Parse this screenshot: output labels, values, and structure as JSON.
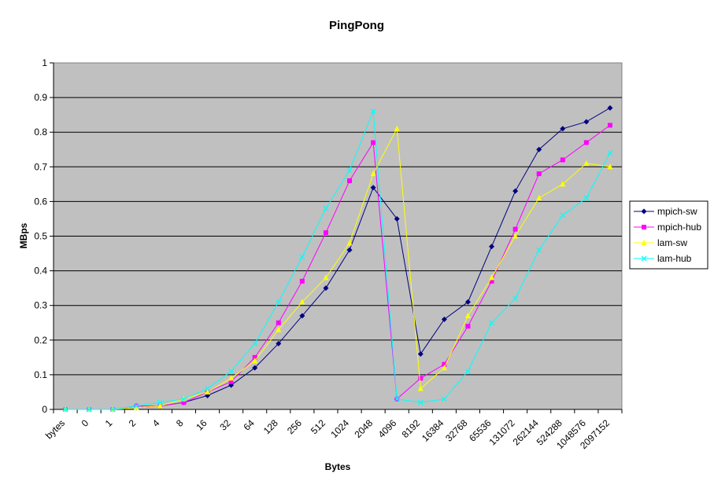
{
  "chart_data": {
    "type": "line",
    "title": "PingPong",
    "xlabel": "Bytes",
    "ylabel": "MBps",
    "ylim": [
      0,
      1
    ],
    "yticks": [
      "0",
      "0.1",
      "0.2",
      "0.3",
      "0.4",
      "0.5",
      "0.6",
      "0.7",
      "0.8",
      "0.9",
      "1"
    ],
    "grid": true,
    "legend_position": "right",
    "background_color": "#c0c0c0",
    "categories": [
      "bytes",
      "0",
      "1",
      "2",
      "4",
      "8",
      "16",
      "32",
      "64",
      "128",
      "256",
      "512",
      "1024",
      "2048",
      "4096",
      "8192",
      "16384",
      "32768",
      "65536",
      "131072",
      "262144",
      "524288",
      "1048576",
      "2097152"
    ],
    "series": [
      {
        "name": "mpich-sw",
        "color": "#000080",
        "marker": "diamond",
        "values": [
          0,
          0,
          0,
          0.005,
          0.01,
          0.02,
          0.04,
          0.07,
          0.12,
          0.19,
          0.27,
          0.35,
          0.46,
          0.64,
          0.55,
          0.16,
          0.26,
          0.31,
          0.47,
          0.63,
          0.75,
          0.81,
          0.83,
          0.87
        ]
      },
      {
        "name": "mpich-hub",
        "color": "#ff00ff",
        "marker": "square",
        "values": [
          0,
          0,
          0,
          0.01,
          0.01,
          0.02,
          0.05,
          0.08,
          0.15,
          0.25,
          0.37,
          0.51,
          0.66,
          0.77,
          0.03,
          0.09,
          0.13,
          0.24,
          0.37,
          0.52,
          0.68,
          0.72,
          0.77,
          0.82
        ]
      },
      {
        "name": "lam-sw",
        "color": "#ffff00",
        "marker": "triangle",
        "values": [
          0,
          0,
          0,
          0.005,
          0.01,
          0.03,
          0.05,
          0.09,
          0.14,
          0.23,
          0.31,
          0.38,
          0.48,
          0.68,
          0.81,
          0.06,
          0.12,
          0.27,
          0.38,
          0.5,
          0.61,
          0.65,
          0.71,
          0.7
        ]
      },
      {
        "name": "lam-hub",
        "color": "#00ffff",
        "marker": "x",
        "values": [
          0,
          0,
          0,
          0.01,
          0.02,
          0.03,
          0.06,
          0.11,
          0.19,
          0.31,
          0.44,
          0.58,
          0.69,
          0.86,
          0.03,
          0.02,
          0.03,
          0.11,
          0.25,
          0.32,
          0.46,
          0.56,
          0.61,
          0.74
        ]
      }
    ]
  }
}
